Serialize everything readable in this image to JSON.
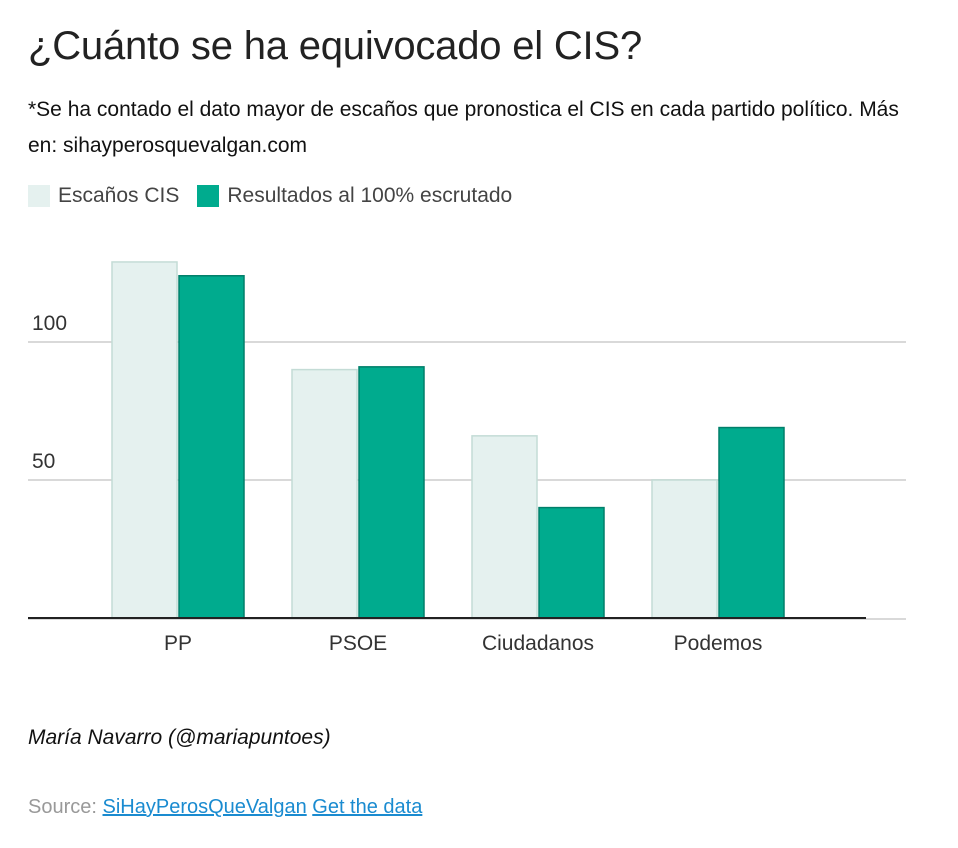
{
  "title": "¿Cuánto se ha equivocado el CIS?",
  "subtitle": "*Se ha contado el dato mayor de escaños que pronostica el CIS en cada partido político. Más en: sihayperosquevalgan.com",
  "author": "María Navarro (@mariapuntoes)",
  "footer": {
    "source_label": "Source:",
    "source_link": "SiHayPerosQueValgan",
    "data_link": "Get the data"
  },
  "colors": {
    "cis": "#e5f1ef",
    "cis_border": "#c4dcd6",
    "result": "#00ab8e",
    "result_border": "#007f6a",
    "grid": "#d9d9d9",
    "axis": "#222222"
  },
  "chart_data": {
    "type": "bar",
    "categories": [
      "PP",
      "PSOE",
      "Ciudadanos",
      "Podemos"
    ],
    "series": [
      {
        "name": "Escaños CIS",
        "values": [
          129,
          90,
          66,
          50
        ]
      },
      {
        "name": "Resultados al 100% escrutado",
        "values": [
          124,
          91,
          40,
          69
        ]
      }
    ],
    "yticks": [
      50,
      100
    ],
    "ylim": [
      0,
      130
    ],
    "grid": true,
    "legend": "top-left",
    "xlabel": "",
    "ylabel": ""
  }
}
